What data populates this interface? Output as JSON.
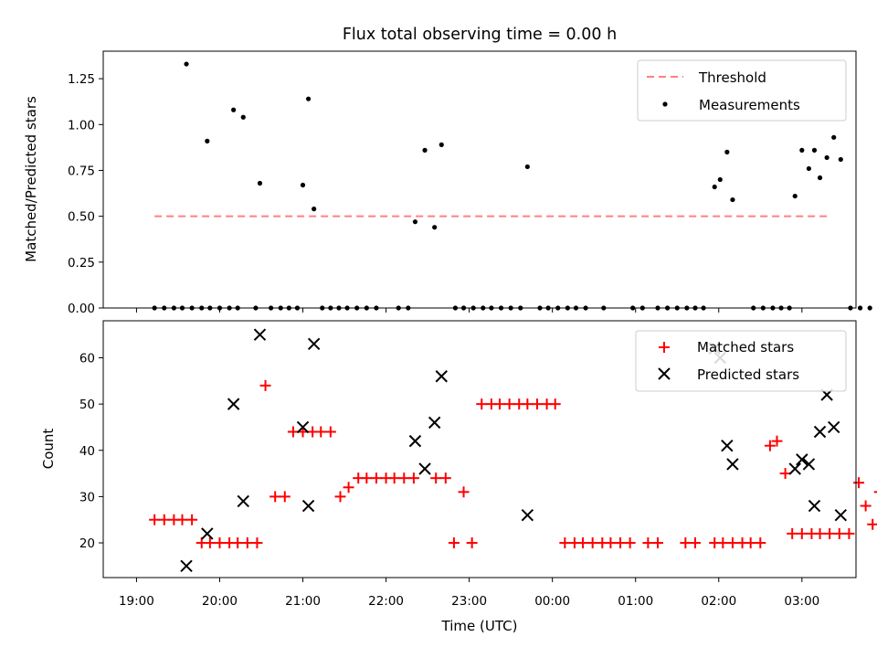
{
  "chart_data": [
    {
      "type": "scatter",
      "title": "Flux total observing time = 0.00 h",
      "xlabel": "",
      "ylabel": "Matched/Predicted stars",
      "ylim": [
        0,
        1.4
      ],
      "yticks": [
        "0.00",
        "0.25",
        "0.50",
        "0.75",
        "1.00",
        "1.25"
      ],
      "threshold": {
        "name": "Threshold",
        "value": 0.5,
        "x_range": [
          "19:13",
          "03:20"
        ],
        "color": "#ff8080"
      },
      "legend": {
        "placement": "upper-right",
        "entries": [
          "Threshold",
          "Measurements"
        ]
      },
      "series": [
        {
          "name": "Measurements",
          "color": "#000000",
          "points": [
            [
              "19:13",
              0
            ],
            [
              "19:20",
              0
            ],
            [
              "19:27",
              0
            ],
            [
              "19:33",
              0
            ],
            [
              "19:40",
              0
            ],
            [
              "19:36",
              1.33
            ],
            [
              "19:47",
              0
            ],
            [
              "19:53",
              0
            ],
            [
              "19:51",
              0.91
            ],
            [
              "20:00",
              0
            ],
            [
              "20:07",
              0
            ],
            [
              "20:13",
              0
            ],
            [
              "20:10",
              1.08
            ],
            [
              "20:17",
              1.04
            ],
            [
              "20:26",
              0
            ],
            [
              "20:29",
              0.68
            ],
            [
              "20:37",
              0
            ],
            [
              "20:44",
              0
            ],
            [
              "20:50",
              0
            ],
            [
              "20:56",
              0
            ],
            [
              "21:00",
              0.67
            ],
            [
              "21:04",
              1.14
            ],
            [
              "21:08",
              0.54
            ],
            [
              "21:14",
              0
            ],
            [
              "21:20",
              0
            ],
            [
              "21:26",
              0
            ],
            [
              "21:32",
              0
            ],
            [
              "21:39",
              0
            ],
            [
              "21:46",
              0
            ],
            [
              "21:53",
              0
            ],
            [
              "22:09",
              0
            ],
            [
              "22:16",
              0
            ],
            [
              "22:21",
              0.47
            ],
            [
              "22:28",
              0.86
            ],
            [
              "22:35",
              0.44
            ],
            [
              "22:40",
              0.89
            ],
            [
              "22:50",
              0
            ],
            [
              "22:56",
              0
            ],
            [
              "23:03",
              0
            ],
            [
              "23:10",
              0
            ],
            [
              "23:16",
              0
            ],
            [
              "23:23",
              0
            ],
            [
              "23:30",
              0
            ],
            [
              "23:37",
              0
            ],
            [
              "23:42",
              0.77
            ],
            [
              "23:51",
              0
            ],
            [
              "23:57",
              0
            ],
            [
              "00:04",
              0
            ],
            [
              "00:11",
              0
            ],
            [
              "00:17",
              0
            ],
            [
              "00:24",
              0
            ],
            [
              "00:37",
              0
            ],
            [
              "00:58",
              0
            ],
            [
              "01:05",
              0
            ],
            [
              "01:16",
              0
            ],
            [
              "01:23",
              0
            ],
            [
              "01:30",
              0
            ],
            [
              "01:37",
              0
            ],
            [
              "01:43",
              0
            ],
            [
              "01:49",
              0
            ],
            [
              "01:57",
              0.66
            ],
            [
              "02:01",
              0.7
            ],
            [
              "02:06",
              0.85
            ],
            [
              "02:10",
              0.59
            ],
            [
              "02:25",
              0
            ],
            [
              "02:32",
              0
            ],
            [
              "02:39",
              0
            ],
            [
              "02:45",
              0
            ],
            [
              "02:51",
              0
            ],
            [
              "02:55",
              0.61
            ],
            [
              "03:00",
              0.86
            ],
            [
              "03:05",
              0.76
            ],
            [
              "03:09",
              0.86
            ],
            [
              "03:13",
              0.71
            ],
            [
              "03:18",
              0.82
            ],
            [
              "03:23",
              0.93
            ],
            [
              "03:28",
              0.81
            ],
            [
              "03:35",
              0
            ],
            [
              "03:42",
              0
            ],
            [
              "03:49",
              0
            ],
            [
              "03:56",
              0
            ],
            [
              "04:01",
              0.69
            ],
            [
              "04:05",
              0.82
            ],
            [
              "04:09",
              0.71
            ],
            [
              "04:15",
              0
            ],
            [
              "04:21",
              0
            ],
            [
              "04:28",
              0
            ],
            [
              "04:34",
              0
            ]
          ]
        }
      ]
    },
    {
      "type": "scatter",
      "title": "",
      "xlabel": "Time (UTC)",
      "ylabel": "Count",
      "ylim": [
        12.5,
        68
      ],
      "yticks": [
        "20",
        "30",
        "40",
        "50",
        "60"
      ],
      "xticks": [
        "19:00",
        "20:00",
        "21:00",
        "22:00",
        "23:00",
        "00:00",
        "01:00",
        "02:00",
        "03:00"
      ],
      "legend": {
        "placement": "upper-right",
        "entries": [
          "Matched stars",
          "Predicted stars"
        ]
      },
      "series": [
        {
          "name": "Matched stars",
          "marker": "plus",
          "color": "#ff0000",
          "points": [
            [
              "19:13",
              25
            ],
            [
              "19:20",
              25
            ],
            [
              "19:27",
              25
            ],
            [
              "19:33",
              25
            ],
            [
              "19:40",
              25
            ],
            [
              "19:47",
              20
            ],
            [
              "19:53",
              20
            ],
            [
              "20:00",
              20
            ],
            [
              "20:07",
              20
            ],
            [
              "20:13",
              20
            ],
            [
              "20:20",
              20
            ],
            [
              "20:27",
              20
            ],
            [
              "20:33",
              54
            ],
            [
              "20:40",
              30
            ],
            [
              "20:47",
              30
            ],
            [
              "20:53",
              44
            ],
            [
              "21:00",
              44
            ],
            [
              "21:07",
              44
            ],
            [
              "21:13",
              44
            ],
            [
              "21:20",
              44
            ],
            [
              "21:27",
              30
            ],
            [
              "21:33",
              32
            ],
            [
              "21:40",
              34
            ],
            [
              "21:46",
              34
            ],
            [
              "21:53",
              34
            ],
            [
              "22:00",
              34
            ],
            [
              "22:06",
              34
            ],
            [
              "22:13",
              34
            ],
            [
              "22:20",
              34
            ],
            [
              "22:36",
              34
            ],
            [
              "22:43",
              34
            ],
            [
              "22:49",
              20
            ],
            [
              "22:56",
              31
            ],
            [
              "23:02",
              20
            ],
            [
              "23:09",
              50
            ],
            [
              "23:16",
              50
            ],
            [
              "23:22",
              50
            ],
            [
              "23:29",
              50
            ],
            [
              "23:36",
              50
            ],
            [
              "23:42",
              50
            ],
            [
              "23:49",
              50
            ],
            [
              "23:56",
              50
            ],
            [
              "00:02",
              50
            ],
            [
              "00:09",
              20
            ],
            [
              "00:16",
              20
            ],
            [
              "00:22",
              20
            ],
            [
              "00:29",
              20
            ],
            [
              "00:36",
              20
            ],
            [
              "00:42",
              20
            ],
            [
              "00:49",
              20
            ],
            [
              "00:56",
              20
            ],
            [
              "01:09",
              20
            ],
            [
              "01:16",
              20
            ],
            [
              "01:36",
              20
            ],
            [
              "01:43",
              20
            ],
            [
              "01:57",
              20
            ],
            [
              "02:03",
              20
            ],
            [
              "02:10",
              20
            ],
            [
              "02:17",
              20
            ],
            [
              "02:23",
              20
            ],
            [
              "02:30",
              20
            ],
            [
              "02:37",
              41
            ],
            [
              "02:42",
              42
            ],
            [
              "02:48",
              35
            ],
            [
              "02:53",
              22
            ],
            [
              "03:00",
              22
            ],
            [
              "03:07",
              22
            ],
            [
              "03:13",
              22
            ],
            [
              "03:20",
              22
            ],
            [
              "03:27",
              22
            ],
            [
              "03:34",
              22
            ],
            [
              "03:41",
              33
            ],
            [
              "03:46",
              28
            ],
            [
              "03:51",
              24
            ],
            [
              "03:56",
              31
            ],
            [
              "04:03",
              43
            ],
            [
              "04:08",
              42
            ],
            [
              "04:16",
              21
            ],
            [
              "04:23",
              21
            ],
            [
              "04:30",
              21
            ],
            [
              "04:36",
              21
            ],
            [
              "04:43",
              21
            ],
            [
              "04:50",
              22
            ],
            [
              "04:56",
              38
            ],
            [
              "05:03",
              20
            ],
            [
              "05:10",
              20
            ],
            [
              "05:16",
              20
            ],
            [
              "05:30",
              20
            ],
            [
              "05:36",
              20
            ]
          ]
        },
        {
          "name": "Predicted stars",
          "marker": "x",
          "color": "#000000",
          "points": [
            [
              "19:36",
              15
            ],
            [
              "19:51",
              22
            ],
            [
              "20:10",
              50
            ],
            [
              "20:17",
              29
            ],
            [
              "20:29",
              65
            ],
            [
              "21:00",
              45
            ],
            [
              "21:04",
              28
            ],
            [
              "21:08",
              63
            ],
            [
              "22:21",
              42
            ],
            [
              "22:28",
              36
            ],
            [
              "22:35",
              46
            ],
            [
              "22:40",
              56
            ],
            [
              "23:42",
              26
            ],
            [
              "01:57",
              62
            ],
            [
              "02:01",
              60
            ],
            [
              "02:06",
              41
            ],
            [
              "02:10",
              37
            ],
            [
              "02:55",
              36
            ],
            [
              "03:00",
              38
            ],
            [
              "03:05",
              37
            ],
            [
              "03:09",
              28
            ],
            [
              "03:13",
              44
            ],
            [
              "03:18",
              52
            ],
            [
              "03:23",
              45
            ],
            [
              "03:28",
              26
            ],
            [
              "04:01",
              32
            ],
            [
              "04:05",
              46
            ],
            [
              "04:09",
              28
            ]
          ]
        }
      ]
    }
  ]
}
